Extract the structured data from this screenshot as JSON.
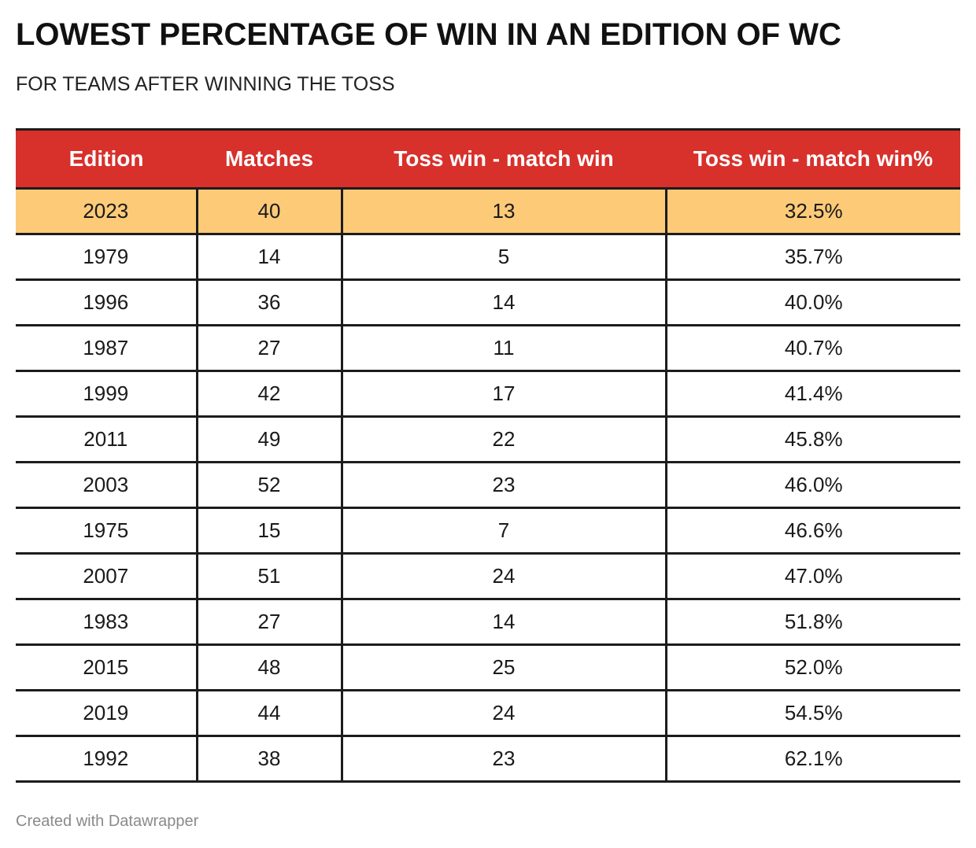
{
  "title": "LOWEST PERCENTAGE OF WIN IN AN EDITION OF WC",
  "subtitle": "FOR TEAMS AFTER WINNING THE TOSS",
  "footer": "Created with Datawrapper",
  "colors": {
    "header_bg": "#d8302b",
    "header_text": "#ffffff",
    "highlight_row": "#fdca78",
    "border": "#1c1c1c"
  },
  "chart_data": {
    "type": "table",
    "columns": [
      "Edition",
      "Matches",
      "Toss win - match win",
      "Toss win - match win%"
    ],
    "highlighted_row": 0,
    "rows": [
      [
        "2023",
        "40",
        "13",
        "32.5%"
      ],
      [
        "1979",
        "14",
        "5",
        "35.7%"
      ],
      [
        "1996",
        "36",
        "14",
        "40.0%"
      ],
      [
        "1987",
        "27",
        "11",
        "40.7%"
      ],
      [
        "1999",
        "42",
        "17",
        "41.4%"
      ],
      [
        "2011",
        "49",
        "22",
        "45.8%"
      ],
      [
        "2003",
        "52",
        "23",
        "46.0%"
      ],
      [
        "1975",
        "15",
        "7",
        "46.6%"
      ],
      [
        "2007",
        "51",
        "24",
        "47.0%"
      ],
      [
        "1983",
        "27",
        "14",
        "51.8%"
      ],
      [
        "2015",
        "48",
        "25",
        "52.0%"
      ],
      [
        "2019",
        "44",
        "24",
        "54.5%"
      ],
      [
        "1992",
        "38",
        "23",
        "62.1%"
      ]
    ]
  }
}
